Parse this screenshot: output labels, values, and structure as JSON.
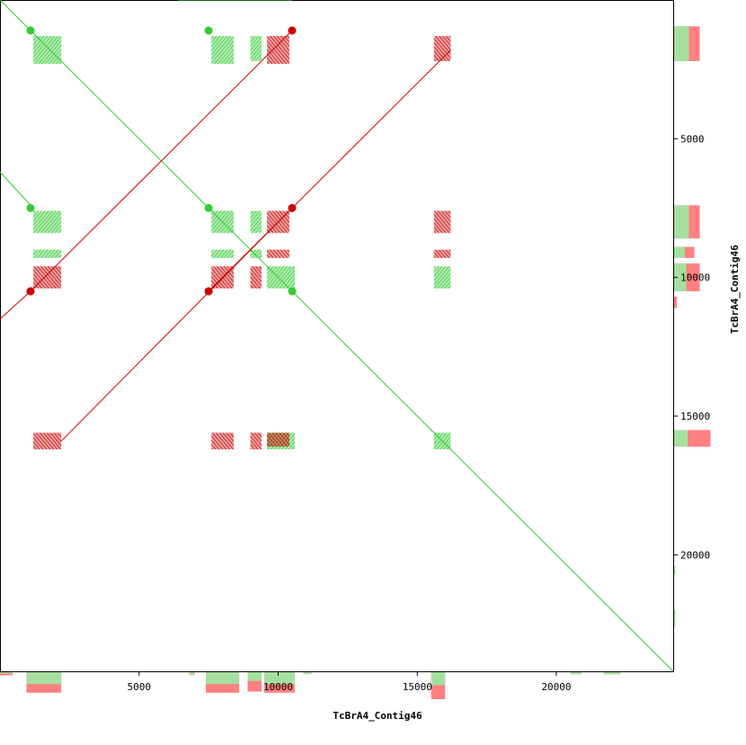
{
  "chart_data": {
    "type": "scatter",
    "title": "",
    "xlabel": "TcBrA4_Contig46",
    "ylabel": "TcBrA4_Contig46",
    "xlim": [
      0,
      24200
    ],
    "ylim": [
      0,
      24200
    ],
    "y_inverted": true,
    "x_ticks": [
      5000,
      10000,
      15000,
      20000
    ],
    "y_ticks": [
      5000,
      10000,
      15000,
      20000
    ],
    "x_tick_labels": [
      "5000",
      "10000",
      "15000",
      "20000"
    ],
    "y_tick_labels": [
      "5000",
      "10000",
      "15000",
      "20000"
    ],
    "grid": false,
    "legend": "none",
    "colors": {
      "forward": "#33cc33",
      "reverse": "#cc0000",
      "forward_light": "#8fdc8f",
      "reverse_light": "#f08080",
      "forward_coverage": "#a6e0a0",
      "reverse_coverage": "#ff8080"
    },
    "series": [
      {
        "name": "forward",
        "segments": [
          [
            [
              0,
              0
            ],
            [
              24200,
              24200
            ]
          ],
          [
            [
              6400,
              0
            ],
            [
              10500,
              0
            ]
          ],
          [
            [
              0,
              6200
            ],
            [
              1100,
              7400
            ]
          ]
        ],
        "blocks": [
          [
            1200,
            1300,
            2200,
            2300
          ],
          [
            7600,
            1300,
            8400,
            2300
          ],
          [
            9000,
            1300,
            9400,
            2200
          ],
          [
            1200,
            7600,
            2200,
            8400
          ],
          [
            7600,
            7600,
            8400,
            8400
          ],
          [
            9000,
            7600,
            9400,
            8400
          ],
          [
            1200,
            9000,
            2200,
            9300
          ],
          [
            7600,
            9000,
            8400,
            9300
          ],
          [
            9000,
            9000,
            9400,
            9300
          ],
          [
            9600,
            9600,
            10600,
            10400
          ],
          [
            15600,
            9600,
            16200,
            10400
          ],
          [
            9600,
            15600,
            10600,
            16200
          ],
          [
            15600,
            15600,
            16200,
            16200
          ]
        ],
        "hits": [
          [
            1100,
            1100
          ],
          [
            7500,
            1100
          ],
          [
            7500,
            7500
          ],
          [
            1100,
            7500
          ],
          [
            10500,
            10500
          ]
        ]
      },
      {
        "name": "reverse",
        "segments": [
          [
            [
              1100,
              10500
            ],
            [
              10500,
              1100
            ]
          ],
          [
            [
              2200,
              15900
            ],
            [
              10500,
              7500
            ]
          ],
          [
            [
              7500,
              10500
            ],
            [
              16200,
              1800
            ]
          ],
          [
            [
              0,
              11500
            ],
            [
              1100,
              10500
            ]
          ]
        ],
        "blocks": [
          [
            9600,
            1300,
            10400,
            2300
          ],
          [
            15600,
            1300,
            16200,
            2200
          ],
          [
            9600,
            7600,
            10400,
            8400
          ],
          [
            15600,
            7600,
            16200,
            8400
          ],
          [
            1200,
            9600,
            2200,
            10400
          ],
          [
            7600,
            9600,
            8400,
            10400
          ],
          [
            9000,
            9600,
            9400,
            10400
          ],
          [
            9600,
            9000,
            10400,
            9300
          ],
          [
            15600,
            9000,
            16200,
            9300
          ],
          [
            1200,
            15600,
            2200,
            16200
          ],
          [
            7600,
            15600,
            8400,
            16200
          ],
          [
            9000,
            15600,
            9400,
            16200
          ],
          [
            9600,
            15600,
            10400,
            16100
          ]
        ],
        "hits": [
          [
            10500,
            1100
          ],
          [
            10500,
            7500
          ],
          [
            1100,
            10500
          ],
          [
            7500,
            10500
          ]
        ]
      }
    ],
    "x_coverage": [
      {
        "x0": 0,
        "x1": 450,
        "fwd": 0.05,
        "rev": 0.14
      },
      {
        "x0": 950,
        "x1": 2200,
        "fwd": 0.55,
        "rev": 0.95
      },
      {
        "x0": 6800,
        "x1": 7000,
        "fwd": 0.1,
        "rev": 0.12
      },
      {
        "x0": 7400,
        "x1": 8600,
        "fwd": 0.55,
        "rev": 0.95
      },
      {
        "x0": 8900,
        "x1": 9400,
        "fwd": 0.4,
        "rev": 0.9
      },
      {
        "x0": 9500,
        "x1": 10600,
        "fwd": 0.55,
        "rev": 0.95
      },
      {
        "x0": 10900,
        "x1": 11200,
        "fwd": 0.1,
        "rev": 0.0
      },
      {
        "x0": 15500,
        "x1": 16000,
        "fwd": 0.6,
        "rev": 1.25
      },
      {
        "x0": 20500,
        "x1": 20900,
        "fwd": 0.1,
        "rev": 0.05
      },
      {
        "x0": 21700,
        "x1": 22300,
        "fwd": 0.1,
        "rev": 0.05
      }
    ],
    "y_coverage": [
      {
        "y0": 950,
        "y1": 2200,
        "fwd": 0.55,
        "rev": 0.95
      },
      {
        "y0": 7400,
        "y1": 8600,
        "fwd": 0.55,
        "rev": 0.95
      },
      {
        "y0": 8900,
        "y1": 9300,
        "fwd": 0.4,
        "rev": 0.75
      },
      {
        "y0": 9500,
        "y1": 10500,
        "fwd": 0.45,
        "rev": 0.95
      },
      {
        "y0": 10700,
        "y1": 11100,
        "fwd": 0.0,
        "rev": 0.1
      },
      {
        "y0": 15500,
        "y1": 16100,
        "fwd": 0.5,
        "rev": 1.35
      },
      {
        "y0": 20400,
        "y1": 20700,
        "fwd": 0.05,
        "rev": 0.0
      },
      {
        "y0": 22000,
        "y1": 22600,
        "fwd": 0.05,
        "rev": 0.0
      }
    ]
  }
}
